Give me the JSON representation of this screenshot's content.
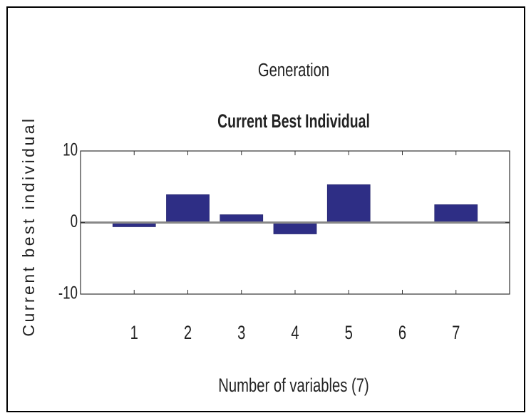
{
  "chart_data": {
    "type": "bar",
    "subtitle": "Generation",
    "title": "Current Best Individual",
    "xlabel": "Number of variables (7)",
    "ylabel": "Current best individual",
    "x": [
      1,
      2,
      3,
      4,
      5,
      6,
      7
    ],
    "values": [
      -0.6,
      3.9,
      1.1,
      -1.6,
      5.3,
      0,
      2.5
    ],
    "color": "#2e2e85",
    "xlim": [
      0,
      8
    ],
    "xticks": [
      1,
      2,
      3,
      4,
      5,
      6,
      7
    ],
    "ylim": [
      -10,
      10
    ],
    "yticks": [
      -10,
      0,
      10
    ],
    "grid": false
  }
}
